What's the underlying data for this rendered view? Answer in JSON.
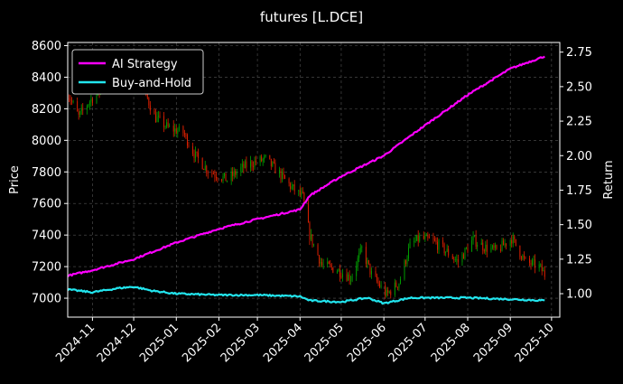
{
  "chart_data": {
    "type": "line",
    "title": "futures [L.DCE]",
    "ylabel_left": "Price",
    "ylabel_right": "Return",
    "xlabel": "",
    "grid": true,
    "legend_position": "top-left",
    "x_range": [
      "2024-10-14",
      "2025-10-07"
    ],
    "x_tick_labels": [
      "2024-11",
      "2024-12",
      "2025-01",
      "2025-02",
      "2025-03",
      "2025-04",
      "2025-05",
      "2025-06",
      "2025-07",
      "2025-08",
      "2025-09",
      "2025-10"
    ],
    "x_tick_dates": [
      "2024-11-01",
      "2024-12-01",
      "2025-01-01",
      "2025-02-01",
      "2025-03-01",
      "2025-04-01",
      "2025-05-01",
      "2025-06-01",
      "2025-07-01",
      "2025-08-01",
      "2025-09-01",
      "2025-10-01"
    ],
    "ylim_left": [
      6880,
      8620
    ],
    "ylim_right": [
      0.83,
      2.82
    ],
    "y_left_ticks": [
      7000,
      7200,
      7400,
      7600,
      7800,
      8000,
      8200,
      8400,
      8600
    ],
    "y_right_ticks": [
      1.0,
      1.25,
      1.5,
      1.75,
      2.0,
      2.25,
      2.5,
      2.75
    ],
    "y_right_tick_labels": [
      "1.00",
      "1.25",
      "1.50",
      "1.75",
      "2.00",
      "2.25",
      "2.50",
      "2.75"
    ],
    "colors": {
      "up": "#00a000",
      "down": "#e02000",
      "ai_strategy": "#ff00ff",
      "buy_and_hold": "#22e5ee",
      "grid": "#555555",
      "axes": "#ffffff"
    },
    "price_series": {
      "name": "",
      "dates": [
        "2024-10-14",
        "2024-10-22",
        "2024-10-30",
        "2024-11-08",
        "2024-11-18",
        "2024-11-27",
        "2024-12-05",
        "2024-12-16",
        "2024-12-26",
        "2025-01-06",
        "2025-01-15",
        "2025-01-24",
        "2025-02-07",
        "2025-02-17",
        "2025-02-26",
        "2025-03-07",
        "2025-03-17",
        "2025-03-26",
        "2025-04-03",
        "2025-04-08",
        "2025-04-17",
        "2025-04-28",
        "2025-05-08",
        "2025-05-16",
        "2025-05-23",
        "2025-06-03",
        "2025-06-12",
        "2025-06-20",
        "2025-06-27",
        "2025-07-07",
        "2025-07-16",
        "2025-07-25",
        "2025-08-05",
        "2025-08-14",
        "2025-08-22",
        "2025-09-02",
        "2025-09-12",
        "2025-09-22",
        "2025-09-26"
      ],
      "values": [
        8300,
        8150,
        8250,
        8330,
        8380,
        8310,
        8400,
        8150,
        8080,
        8050,
        7900,
        7810,
        7750,
        7820,
        7860,
        7880,
        7790,
        7700,
        7640,
        7400,
        7210,
        7180,
        7130,
        7310,
        7150,
        7020,
        7100,
        7330,
        7380,
        7360,
        7300,
        7230,
        7370,
        7320,
        7300,
        7380,
        7230,
        7200,
        7150
      ]
    },
    "series": [
      {
        "name": "AI Strategy",
        "dates": [
          "2024-10-14",
          "2024-11-01",
          "2024-12-01",
          "2025-01-01",
          "2025-02-01",
          "2025-03-01",
          "2025-04-01",
          "2025-04-08",
          "2025-05-01",
          "2025-06-01",
          "2025-06-20",
          "2025-07-01",
          "2025-08-01",
          "2025-09-01",
          "2025-09-26"
        ],
        "values": [
          1.13,
          1.17,
          1.25,
          1.37,
          1.47,
          1.54,
          1.61,
          1.71,
          1.85,
          2.0,
          2.14,
          2.22,
          2.44,
          2.63,
          2.72
        ]
      },
      {
        "name": "Buy-and-Hold",
        "dates": [
          "2024-10-14",
          "2024-11-01",
          "2024-11-20",
          "2024-12-01",
          "2024-12-15",
          "2025-01-01",
          "2025-02-01",
          "2025-03-01",
          "2025-04-01",
          "2025-04-08",
          "2025-05-01",
          "2025-05-20",
          "2025-06-01",
          "2025-06-20",
          "2025-07-01",
          "2025-08-01",
          "2025-09-01",
          "2025-09-26"
        ],
        "values": [
          1.03,
          1.01,
          1.04,
          1.05,
          1.02,
          1.0,
          0.99,
          0.99,
          0.98,
          0.95,
          0.94,
          0.97,
          0.93,
          0.97,
          0.97,
          0.97,
          0.96,
          0.95
        ]
      }
    ]
  }
}
